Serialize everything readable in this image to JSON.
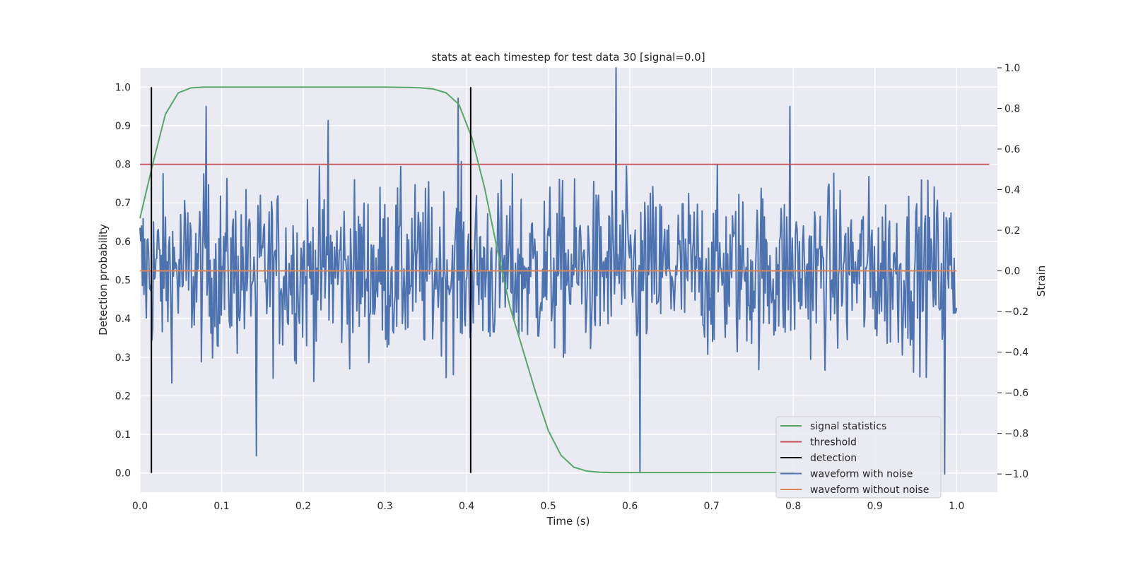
{
  "chart_data": {
    "type": "line",
    "title": "stats at each timestep for test data 30 [signal=0.0]",
    "xlabel": "Time (s)",
    "ylabel": "Detection probability",
    "ylabel_right": "Strain",
    "xlim": [
      0.0,
      1.05
    ],
    "ylim": [
      -0.05,
      1.05
    ],
    "ylim_right": [
      -1.09,
      1.0
    ],
    "x_ticks": [
      0.0,
      0.1,
      0.2,
      0.3,
      0.4,
      0.5,
      0.6,
      0.7,
      0.8,
      0.9,
      1.0
    ],
    "x_tick_labels": [
      "0.0",
      "0.1",
      "0.2",
      "0.3",
      "0.4",
      "0.5",
      "0.6",
      "0.7",
      "0.8",
      "0.9",
      "1.0"
    ],
    "y_ticks": [
      0.0,
      0.1,
      0.2,
      0.3,
      0.4,
      0.5,
      0.6,
      0.7,
      0.8,
      0.9,
      1.0
    ],
    "y_tick_labels": [
      "0.0",
      "0.1",
      "0.2",
      "0.3",
      "0.4",
      "0.5",
      "0.6",
      "0.7",
      "0.8",
      "0.9",
      "1.0"
    ],
    "y_ticks_right": [
      -1.0,
      -0.8,
      -0.6,
      -0.4,
      -0.2,
      0.0,
      0.2,
      0.4,
      0.6,
      0.8,
      1.0
    ],
    "y_tick_labels_right": [
      "−1.0",
      "−0.8",
      "−0.6",
      "−0.4",
      "−0.2",
      "0.0",
      "0.2",
      "0.4",
      "0.6",
      "0.8",
      "1.0"
    ],
    "grid": true,
    "legend_position": "lower right",
    "colors": {
      "signal_statistics": "#55a868",
      "threshold": "#c44e52",
      "detection": "#000000",
      "waveform_with_noise": "#4c72b0",
      "waveform_without_noise": "#dd8452",
      "axes_background": "#eaeaf2",
      "grid": "#ffffff"
    },
    "series": [
      {
        "name": "signal statistics",
        "axis": "left",
        "x": [
          0.0,
          0.0156,
          0.0312,
          0.0469,
          0.0625,
          0.0781,
          0.0938,
          0.1094,
          0.125,
          0.15,
          0.2,
          0.25,
          0.3,
          0.33,
          0.3438,
          0.3594,
          0.375,
          0.3906,
          0.4063,
          0.4219,
          0.4375,
          0.4531,
          0.4688,
          0.4844,
          0.5,
          0.5156,
          0.5313,
          0.5469,
          0.5625,
          0.5781,
          0.6,
          0.7,
          0.8
        ],
        "y": [
          0.66,
          0.8,
          0.93,
          0.985,
          0.998,
          1.0,
          1.0,
          1.0,
          1.0,
          1.0,
          1.0,
          1.0,
          1.0,
          0.999,
          0.998,
          0.995,
          0.985,
          0.955,
          0.87,
          0.74,
          0.58,
          0.43,
          0.32,
          0.21,
          0.11,
          0.046,
          0.015,
          0.005,
          0.002,
          0.001,
          0.001,
          0.001,
          0.001
        ]
      },
      {
        "name": "threshold",
        "axis": "left",
        "x": [
          0.0,
          1.04
        ],
        "y": [
          0.8,
          0.8
        ]
      },
      {
        "name": "detection",
        "axis": "left",
        "events": [
          0.014,
          0.405
        ],
        "y_range": [
          0.0,
          1.0
        ]
      },
      {
        "name": "waveform with noise",
        "axis": "right",
        "x_start": 0.0,
        "x_end": 1.0,
        "samples": 1024,
        "peaks": [
          {
            "x": 0.081,
            "y": 0.81
          },
          {
            "x": 0.143,
            "y": -0.91
          },
          {
            "x": 0.23,
            "y": 0.74
          },
          {
            "x": 0.39,
            "y": 0.85
          },
          {
            "x": 0.583,
            "y": 1.0
          },
          {
            "x": 0.612,
            "y": -0.99
          },
          {
            "x": 0.796,
            "y": 0.81
          },
          {
            "x": 0.985,
            "y": -1.0
          }
        ]
      },
      {
        "name": "waveform without noise",
        "axis": "right",
        "x": [
          0.0,
          1.0
        ],
        "y": [
          0.0,
          0.0
        ]
      }
    ]
  }
}
